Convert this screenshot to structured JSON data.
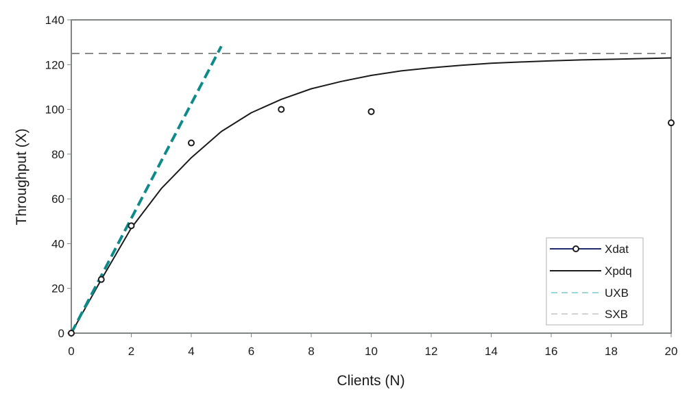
{
  "chart_data": {
    "type": "line",
    "title": "",
    "xlabel": "Clients (N)",
    "ylabel": "Throughput (X)",
    "xlim": [
      0,
      20
    ],
    "ylim": [
      0,
      140
    ],
    "x_ticks": [
      0,
      2,
      4,
      6,
      8,
      10,
      12,
      14,
      16,
      18,
      20
    ],
    "y_ticks": [
      0,
      20,
      40,
      60,
      80,
      100,
      120,
      140
    ],
    "grid": false,
    "legend_position": "lower right",
    "series": [
      {
        "name": "Xdat",
        "style": "markers",
        "marker": "open-circle",
        "color": "#1f2a6b",
        "x": [
          0,
          1,
          2,
          4,
          7,
          10,
          20
        ],
        "y": [
          0,
          24,
          48,
          85,
          100,
          99,
          94
        ]
      },
      {
        "name": "Xpdq",
        "style": "solid",
        "color": "#1a1a1a",
        "x": [
          0,
          1,
          2,
          3,
          4,
          5,
          6,
          7,
          8,
          9,
          10,
          11,
          12,
          13,
          14,
          15,
          16,
          17,
          18,
          19,
          20
        ],
        "y": [
          0,
          24,
          47,
          64.6,
          78.4,
          90.1,
          98.5,
          104.5,
          109.2,
          112.5,
          115.2,
          117.2,
          118.6,
          119.7,
          120.6,
          121.2,
          121.7,
          122.1,
          122.4,
          122.7,
          123.0
        ]
      },
      {
        "name": "UXB",
        "style": "dashed",
        "color": "#0f8a8a",
        "x": [
          0,
          5
        ],
        "y": [
          0,
          128.2
        ]
      },
      {
        "name": "SXB",
        "style": "dashed",
        "color": "#8a8a8a",
        "x": [
          0,
          20
        ],
        "y": [
          125,
          125
        ]
      }
    ]
  },
  "legend": {
    "items": [
      {
        "label": "Xdat"
      },
      {
        "label": "Xpdq"
      },
      {
        "label": "UXB"
      },
      {
        "label": "SXB"
      }
    ]
  },
  "colors": {
    "frame": "#7f8585",
    "xdat": "#1f2a6b",
    "xpdq": "#1a1a1a",
    "uxb": "#0f8a8a",
    "uxb_legend": "#7fc9c9",
    "sxb": "#8a8a8a",
    "sxb_legend": "#c4c4c4",
    "legend_border": "#b0b0b0"
  }
}
